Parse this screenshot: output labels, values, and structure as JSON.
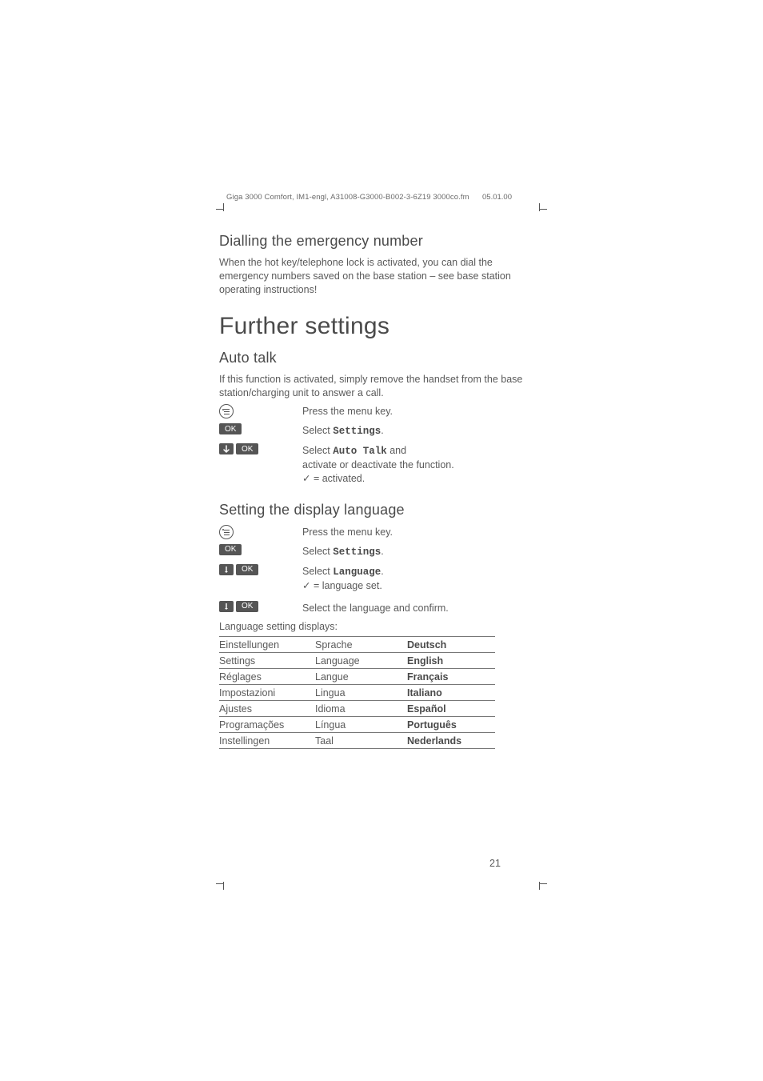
{
  "header": {
    "doc_info": "Giga 3000 Comfort, IM1-engl, A31008-G3000-B002-3-6Z19  3000co.fm",
    "date": "05.01.00"
  },
  "sections": {
    "dial_emergency": {
      "title": "Dialling the emergency number",
      "body": "When the hot key/telephone lock is activated, you can dial the emergency numbers saved on the base station – see base station operating instructions!"
    },
    "chapter": "Further settings",
    "auto_talk": {
      "title": "Auto talk",
      "intro": "If this function is activated, simply remove the handset from the base station/charging unit to answer a call.",
      "steps": [
        {
          "icon": "menu",
          "text_pre": "Press the menu key."
        },
        {
          "icon": "ok",
          "text_pre": "Select ",
          "mono": "Settings",
          "text_post": "."
        },
        {
          "icon": "arrow_ok",
          "text_pre": "Select ",
          "mono": "Auto Talk",
          "text_post": "  and",
          "line2": "activate or deactivate the function.",
          "line3_pre": "✓",
          "line3_post": " = activated."
        }
      ]
    },
    "display_lang": {
      "title": "Setting the display language",
      "steps": [
        {
          "icon": "menu",
          "text_pre": "Press the menu key."
        },
        {
          "icon": "ok",
          "text_pre": "Select ",
          "mono": "Settings",
          "text_post": "."
        },
        {
          "icon": "arrow_ok",
          "text_pre": "Select ",
          "mono": "Language",
          "text_post": ".",
          "line2_pre": "✓",
          "line2_post": " = language set."
        },
        {
          "icon": "arrow_ok",
          "text_pre": "Select the language and confirm."
        }
      ],
      "table_intro": "Language setting displays:",
      "rows": [
        [
          "Einstellungen",
          "Sprache",
          "Deutsch"
        ],
        [
          "Settings",
          "Language",
          "English"
        ],
        [
          "Réglages",
          "Langue",
          "Français"
        ],
        [
          "Impostazioni",
          "Lingua",
          "Italiano"
        ],
        [
          "Ajustes",
          "Idioma",
          "Español"
        ],
        [
          "Programações",
          "Língua",
          "Português"
        ],
        [
          "Instellingen",
          "Taal",
          "Nederlands"
        ]
      ]
    }
  },
  "ok_label": "OK",
  "page_number": "21"
}
